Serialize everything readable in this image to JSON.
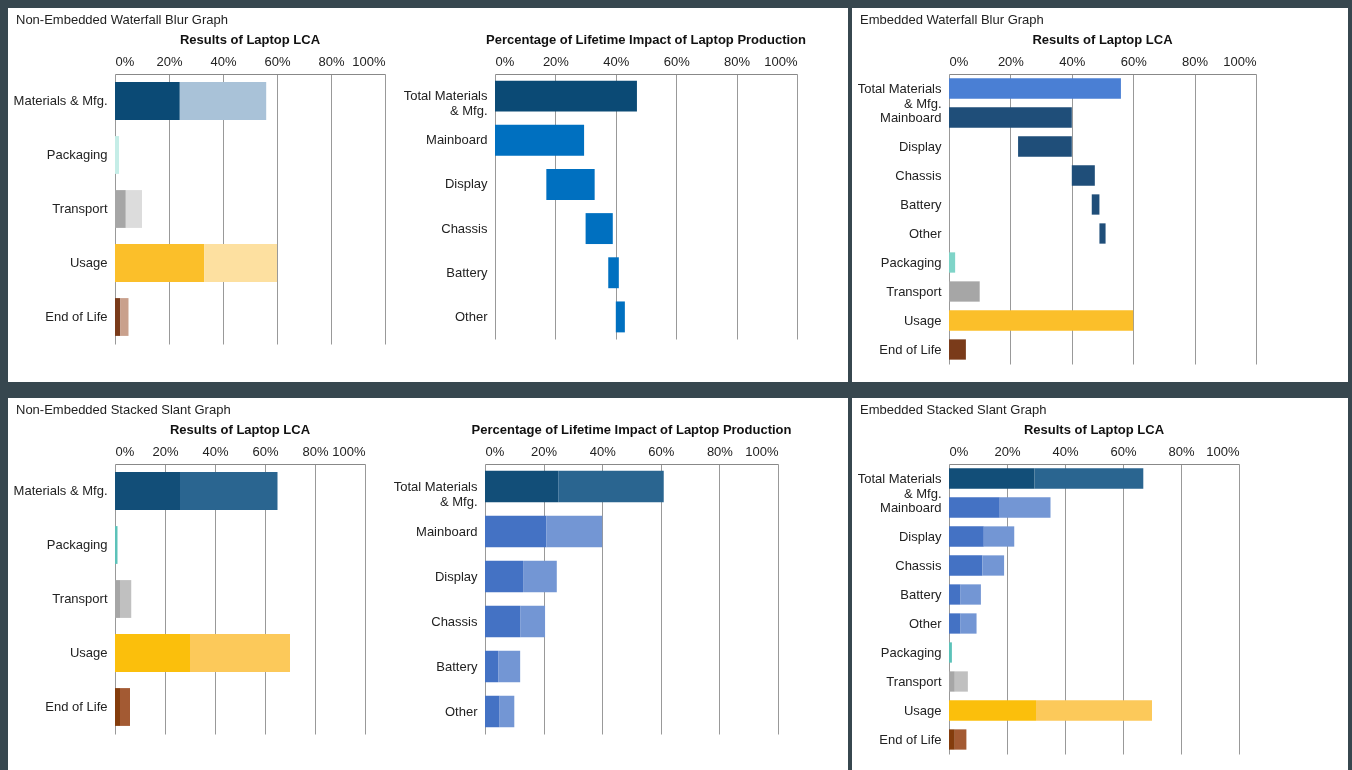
{
  "chart_data": [
    {
      "type": "bar",
      "orientation": "horizontal",
      "title": "Results of Laptop LCA",
      "annotations": [
        "Non-Embedded Waterfall Blur Graph"
      ],
      "categories": [
        "Materials & Mfg.",
        "Packaging",
        "Transport",
        "Usage",
        "End of Life"
      ],
      "stacked": true,
      "series": [
        {
          "values": [
            24,
            null,
            4,
            33,
            2
          ],
          "colors": [
            "#0b4a75",
            null,
            "#a6a6a6",
            "#fbbf2a",
            "#7a3b1a"
          ]
        },
        {
          "values": [
            32,
            1.5,
            6,
            27,
            3
          ],
          "colors": [
            "#a9c2d8",
            "#c5ede7",
            "#dcdcdc",
            "#fde0a0",
            "#c9a08c"
          ]
        }
      ],
      "xlim": [
        0,
        100
      ],
      "xticks": [
        {
          "value": 0,
          "label": "0%"
        },
        {
          "value": 20,
          "label": "20%"
        },
        {
          "value": 40,
          "label": "40%"
        },
        {
          "value": 60,
          "label": "60%"
        },
        {
          "value": 80,
          "label": "80%"
        },
        {
          "value": 100,
          "label": "100%"
        }
      ],
      "grid": "x"
    },
    {
      "type": "bar",
      "orientation": "horizontal",
      "title": "Percentage of Lifetime Impact of Laptop Production",
      "categories": [
        "Total Materials & Mfg.",
        "Mainboard",
        "Display",
        "Chassis",
        "Battery",
        "Other"
      ],
      "base": [
        0,
        0,
        17,
        30,
        37.5,
        40
      ],
      "values": [
        47,
        29.5,
        16,
        9,
        3.5,
        3
      ],
      "colors": [
        "#0b4a75",
        "#0070c0",
        "#0070c0",
        "#0070c0",
        "#0070c0",
        "#0070c0"
      ],
      "xlim": [
        0,
        100
      ],
      "xticks": [
        {
          "value": 0,
          "label": "0%"
        },
        {
          "value": 20,
          "label": "20%"
        },
        {
          "value": 40,
          "label": "40%"
        },
        {
          "value": 60,
          "label": "60%"
        },
        {
          "value": 80,
          "label": "80%"
        },
        {
          "value": 100,
          "label": "100%"
        }
      ],
      "grid": "x"
    },
    {
      "type": "bar",
      "orientation": "horizontal",
      "title": "Results of Laptop LCA",
      "annotations": [
        "Embedded Waterfall Blur Graph"
      ],
      "categories": [
        "Total Materials & Mfg.",
        "Mainboard",
        "Display",
        "Chassis",
        "Battery",
        "Other",
        "Packaging",
        "Transport",
        "Usage",
        "End of Life"
      ],
      "base": [
        0,
        0,
        22.5,
        40,
        46.5,
        49,
        0,
        0,
        0,
        0
      ],
      "values": [
        56,
        40,
        17.5,
        7.5,
        2.5,
        2,
        2,
        10,
        60,
        5.5
      ],
      "colors": [
        "#4a7fd4",
        "#1f4e79",
        "#1f4e79",
        "#1f4e79",
        "#1f4e79",
        "#1f4e79",
        "#7fd4c8",
        "#a6a6a6",
        "#fbbf2a",
        "#7a3b1a"
      ],
      "xlim": [
        0,
        100
      ],
      "xticks": [
        {
          "value": 0,
          "label": "0%"
        },
        {
          "value": 20,
          "label": "20%"
        },
        {
          "value": 40,
          "label": "40%"
        },
        {
          "value": 60,
          "label": "60%"
        },
        {
          "value": 80,
          "label": "80%"
        },
        {
          "value": 100,
          "label": "100%"
        }
      ],
      "grid": "x"
    },
    {
      "type": "bar",
      "orientation": "horizontal",
      "title": "Results of Laptop LCA",
      "annotations": [
        "Non-Embedded Stacked Slant Graph"
      ],
      "categories": [
        "Materials & Mfg.",
        "Packaging",
        "Transport",
        "Usage",
        "End of Life"
      ],
      "stacked": true,
      "series": [
        {
          "values": [
            26,
            null,
            2,
            30,
            2
          ],
          "colors": [
            "#124e78",
            null,
            "#a6a6a6",
            "#fbbf0c",
            "#843c0c"
          ]
        },
        {
          "values": [
            39,
            1,
            4.5,
            40,
            4
          ],
          "colors": [
            "#2a6590",
            "#5cc2b9",
            "#c0c0c0",
            "#fcc95a",
            "#a35a33"
          ]
        }
      ],
      "xlim": [
        0,
        100
      ],
      "xticks": [
        {
          "value": 0,
          "label": "0%"
        },
        {
          "value": 20,
          "label": "20%"
        },
        {
          "value": 40,
          "label": "40%"
        },
        {
          "value": 60,
          "label": "60%"
        },
        {
          "value": 80,
          "label": "80%"
        },
        {
          "value": 100,
          "label": "100%"
        }
      ],
      "grid": "x"
    },
    {
      "type": "bar",
      "orientation": "horizontal",
      "title": "Percentage of Lifetime Impact of Laptop Production",
      "categories": [
        "Total Materials & Mfg.",
        "Mainboard",
        "Display",
        "Chassis",
        "Battery",
        "Other"
      ],
      "stacked": true,
      "series": [
        {
          "values": [
            25,
            21,
            13,
            12,
            4.5,
            5
          ],
          "colors": [
            "#124e78",
            "#4472c4",
            "#4472c4",
            "#4472c4",
            "#4472c4",
            "#4472c4"
          ]
        },
        {
          "values": [
            36,
            19,
            11.5,
            8.5,
            7.5,
            5
          ],
          "colors": [
            "#2a6590",
            "#7396d4",
            "#7396d4",
            "#7396d4",
            "#7396d4",
            "#7396d4"
          ]
        }
      ],
      "xlim": [
        0,
        100
      ],
      "xticks": [
        {
          "value": 0,
          "label": "0%"
        },
        {
          "value": 20,
          "label": "20%"
        },
        {
          "value": 40,
          "label": "40%"
        },
        {
          "value": 60,
          "label": "60%"
        },
        {
          "value": 80,
          "label": "80%"
        },
        {
          "value": 100,
          "label": "100%"
        }
      ],
      "grid": "x"
    },
    {
      "type": "bar",
      "orientation": "horizontal",
      "title": "Results of Laptop LCA",
      "annotations": [
        "Embedded Stacked Slant Graph"
      ],
      "categories": [
        "Total Materials & Mfg.",
        "Mainboard",
        "Display",
        "Chassis",
        "Battery",
        "Other",
        "Packaging",
        "Transport",
        "Usage",
        "End of Life"
      ],
      "stacked": true,
      "series": [
        {
          "values": [
            29.5,
            17.5,
            12,
            11.5,
            4,
            4,
            null,
            2,
            30,
            2
          ],
          "colors": [
            "#124e78",
            "#4472c4",
            "#4472c4",
            "#4472c4",
            "#4472c4",
            "#4472c4",
            null,
            "#a6a6a6",
            "#fbbf0c",
            "#843c0c"
          ]
        },
        {
          "values": [
            37.5,
            17.5,
            10.5,
            7.5,
            7,
            5.5,
            1,
            4.5,
            40,
            4
          ],
          "colors": [
            "#2a6590",
            "#7396d4",
            "#7396d4",
            "#7396d4",
            "#7396d4",
            "#7396d4",
            "#5cc2b9",
            "#c0c0c0",
            "#fcc95a",
            "#a35a33"
          ]
        }
      ],
      "xlim": [
        0,
        100
      ],
      "xticks": [
        {
          "value": 0,
          "label": "0%"
        },
        {
          "value": 20,
          "label": "20%"
        },
        {
          "value": 40,
          "label": "40%"
        },
        {
          "value": 60,
          "label": "60%"
        },
        {
          "value": 80,
          "label": "80%"
        },
        {
          "value": 100,
          "label": "100%"
        }
      ],
      "grid": "x"
    }
  ]
}
